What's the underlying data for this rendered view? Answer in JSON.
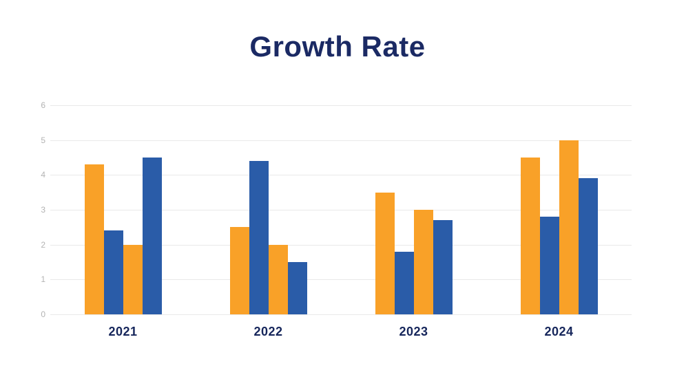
{
  "page": {
    "background": "#ffffff"
  },
  "chart_data": {
    "type": "bar",
    "title": "Growth Rate",
    "categories": [
      "2021",
      "2022",
      "2023",
      "2024"
    ],
    "series": [
      {
        "color": "#f9a128",
        "values": [
          4.3,
          2.5,
          3.5,
          4.5
        ]
      },
      {
        "color": "#2a5ca8",
        "values": [
          2.4,
          4.4,
          1.8,
          2.8
        ]
      },
      {
        "color": "#f9a128",
        "values": [
          2.0,
          2.0,
          3.0,
          5.0
        ]
      },
      {
        "color": "#2a5ca8",
        "values": [
          4.5,
          1.5,
          2.7,
          3.9
        ]
      }
    ],
    "xlabel": "",
    "ylabel": "",
    "ylim": [
      0,
      6
    ],
    "yticks": [
      0,
      1,
      2,
      3,
      4,
      5,
      6
    ],
    "grid": true,
    "legend": "none",
    "colors": {
      "orange": "#f9a128",
      "blue": "#2a5ca8",
      "title": "#1b2a64",
      "category_label": "#16265b",
      "tick_label": "#b3b3b3",
      "gridline": "#e9e9e9"
    }
  }
}
